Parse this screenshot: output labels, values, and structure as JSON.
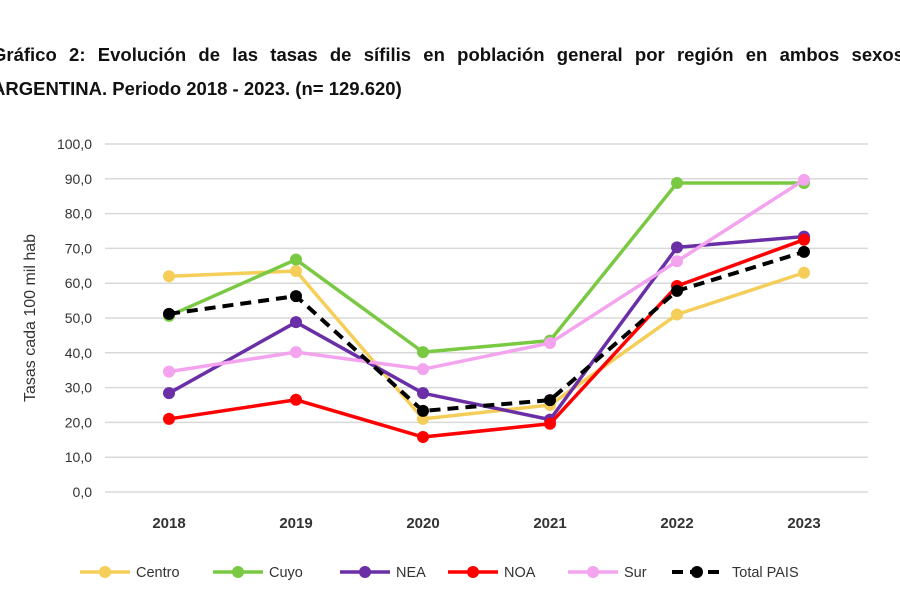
{
  "chart_data": {
    "type": "line",
    "title": "Gráfico 2: Evolución de las tasas de sífilis en población general por región en ambos sexos",
    "subtitle": "ARGENTINA. Periodo 2018 - 2023. (n= 129.620)",
    "xlabel": "",
    "ylabel": "Tasas cada 100 mil hab",
    "categories": [
      "2018",
      "2019",
      "2020",
      "2021",
      "2022",
      "2023"
    ],
    "ylim": [
      0,
      100
    ],
    "yticks": [
      "0,0",
      "10,0",
      "20,0",
      "30,0",
      "40,0",
      "50,0",
      "60,0",
      "70,0",
      "80,0",
      "90,0",
      "100,0"
    ],
    "grid": true,
    "legend_position": "bottom",
    "series": [
      {
        "name": "Centro",
        "color": "#F5CE5A",
        "dashed": false,
        "values": [
          62.0,
          63.5,
          21.0,
          25.0,
          51.0,
          63.0
        ]
      },
      {
        "name": "Cuyo",
        "color": "#7AC943",
        "dashed": false,
        "values": [
          50.6,
          66.8,
          40.2,
          43.5,
          88.8,
          88.8
        ]
      },
      {
        "name": "NEA",
        "color": "#6A2FA6",
        "dashed": false,
        "values": [
          28.4,
          48.8,
          28.4,
          20.8,
          70.3,
          73.4
        ]
      },
      {
        "name": "NOA",
        "color": "#FF0000",
        "dashed": false,
        "values": [
          21.0,
          26.5,
          15.8,
          19.6,
          59.2,
          72.5
        ]
      },
      {
        "name": "Sur",
        "color": "#F4A3EE",
        "dashed": false,
        "values": [
          34.6,
          40.2,
          35.3,
          42.8,
          66.3,
          89.7
        ]
      },
      {
        "name": "Total PAIS",
        "color": "#000000",
        "dashed": true,
        "values": [
          51.2,
          56.3,
          23.3,
          26.4,
          57.8,
          69.0
        ]
      }
    ]
  }
}
